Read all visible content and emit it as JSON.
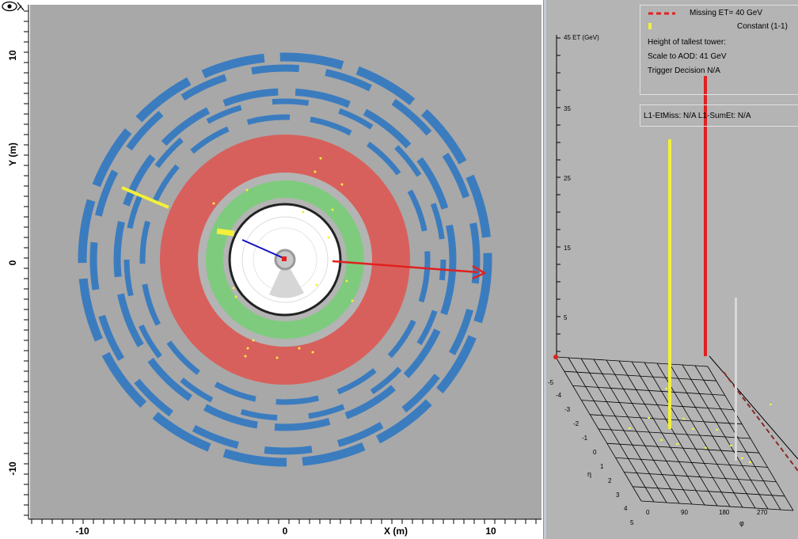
{
  "xy_view": {
    "y_axis": {
      "title": "Y (m)",
      "ticks": [
        "10",
        "0",
        "-10"
      ]
    },
    "x_axis": {
      "title": "X (m)",
      "ticks": [
        "-10",
        "0",
        "10"
      ]
    },
    "eye_icon": "eye-toggle-icon",
    "colors": {
      "background": "#a8a8a8",
      "muon_chambers": "#3b7cbf",
      "hadronic_calorimeter": "#d8605c",
      "em_calorimeter": "#7ecb7e",
      "inner_detector": "#ffffff",
      "missing_et_arrow": "#e02020",
      "track": "#1010c0",
      "deposit": "#f2f03a"
    }
  },
  "lego_view": {
    "legend": {
      "missing_et": "Missing ET= 40 GeV",
      "constant": "Constant (1-1)",
      "tallest_tower": "Height of tallest tower:",
      "scale": "Scale to AOD: 41 GeV",
      "trigger": "Trigger Decision N/A"
    },
    "l1_info": "L1-EtMiss: N/A L1-SumEt: N/A",
    "et_axis": {
      "title": "45 ET (GeV)",
      "ticks": [
        "35",
        "25",
        "15",
        "5"
      ]
    },
    "eta_axis": {
      "title": "η",
      "ticks": [
        "-5",
        "-4",
        "-3",
        "-2",
        "-1",
        "0",
        "1",
        "2",
        "3",
        "4",
        "5"
      ]
    },
    "phi_axis": {
      "title": "φ",
      "ticks": [
        "0",
        "90",
        "180",
        "270"
      ]
    },
    "colors": {
      "missing_et": "#e02020",
      "constant": "#f2f03a",
      "grid": "#000000"
    }
  }
}
